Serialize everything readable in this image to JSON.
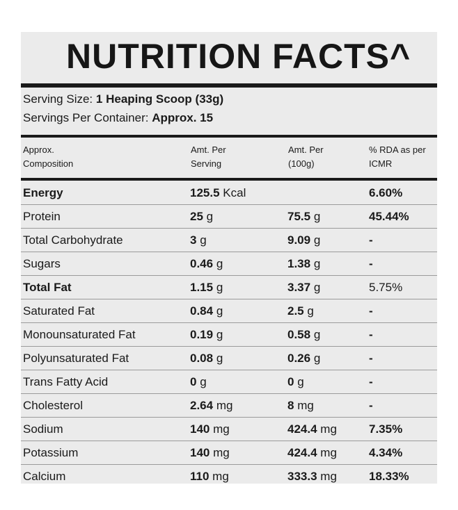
{
  "title": "NUTRITION FACTS^",
  "serving": {
    "size_label": "Serving Size:",
    "size_value": "1 Heaping Scoop (33g)",
    "per_container_label": "Servings Per Container:",
    "per_container_value": "Approx. 15"
  },
  "headers": {
    "composition": [
      "Approx.",
      "Composition"
    ],
    "per_serving": [
      "Amt. Per",
      "Serving"
    ],
    "per_100g": [
      "Amt. Per",
      "(100g)"
    ],
    "rda": [
      "% RDA as per",
      "ICMR"
    ]
  },
  "rows": [
    {
      "name": "Energy",
      "serving_num": "125.5",
      "serving_unit": "Kcal",
      "per100_num": "",
      "per100_unit": "",
      "rda": "6.60%"
    },
    {
      "name": "Protein",
      "serving_num": "25",
      "serving_unit": "g",
      "per100_num": "75.5",
      "per100_unit": "g",
      "rda": "45.44%"
    },
    {
      "name": "Total Carbohydrate",
      "serving_num": "3",
      "serving_unit": "g",
      "per100_num": "9.09",
      "per100_unit": "g",
      "rda": "-"
    },
    {
      "name": "Sugars",
      "serving_num": "0.46",
      "serving_unit": "g",
      "per100_num": "1.38",
      "per100_unit": "g",
      "rda": "-"
    },
    {
      "name": "Total Fat",
      "serving_num": "1.15",
      "serving_unit": "g",
      "per100_num": "3.37",
      "per100_unit": "g",
      "rda": "5.75%"
    },
    {
      "name": "Saturated Fat",
      "serving_num": "0.84",
      "serving_unit": "g",
      "per100_num": "2.5",
      "per100_unit": "g",
      "rda": "-"
    },
    {
      "name": "Monounsaturated Fat",
      "serving_num": "0.19",
      "serving_unit": "g",
      "per100_num": "0.58",
      "per100_unit": "g",
      "rda": "-"
    },
    {
      "name": "Polyunsaturated Fat",
      "serving_num": "0.08",
      "serving_unit": "g",
      "per100_num": "0.26",
      "per100_unit": "g",
      "rda": "-"
    },
    {
      "name": "Trans Fatty Acid",
      "serving_num": "0",
      "serving_unit": "g",
      "per100_num": "0",
      "per100_unit": "g",
      "rda": "-"
    },
    {
      "name": "Cholesterol",
      "serving_num": "2.64",
      "serving_unit": "mg",
      "per100_num": "8",
      "per100_unit": "mg",
      "rda": "-"
    },
    {
      "name": "Sodium",
      "serving_num": "140",
      "serving_unit": "mg",
      "per100_num": "424.4",
      "per100_unit": "mg",
      "rda": "7.35%"
    },
    {
      "name": "Potassium",
      "serving_num": "140",
      "serving_unit": "mg",
      "per100_num": "424.4",
      "per100_unit": "mg",
      "rda": "4.34%"
    },
    {
      "name": "Calcium",
      "serving_num": "110",
      "serving_unit": "mg",
      "per100_num": "333.3",
      "per100_unit": "mg",
      "rda": "18.33%"
    }
  ]
}
